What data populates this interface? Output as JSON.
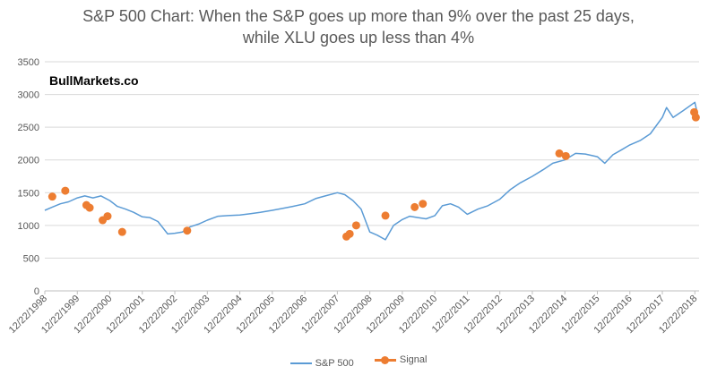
{
  "colors": {
    "line": "#5b9bd5",
    "signal": "#ed7d31",
    "grid": "#d9d9d9",
    "axis_text": "#595959"
  },
  "watermark": "BullMarkets.co",
  "chart_data": {
    "type": "line",
    "title_lines": [
      "S&P 500 Chart: When the S&P goes up more than 9% over the past 25 days,",
      "while XLU goes up less than 4%"
    ],
    "xlabel": "",
    "ylabel": "",
    "ylim": [
      0,
      3500
    ],
    "yticks": [
      0,
      500,
      1000,
      1500,
      2000,
      2500,
      3000,
      3500
    ],
    "xlim": [
      1998.97,
      2019.1
    ],
    "xticks": [
      {
        "label": "12/22/1998",
        "x": 1998.97
      },
      {
        "label": "12/22/1999",
        "x": 1999.97
      },
      {
        "label": "12/22/2000",
        "x": 2000.97
      },
      {
        "label": "12/22/2001",
        "x": 2001.97
      },
      {
        "label": "12/22/2002",
        "x": 2002.97
      },
      {
        "label": "12/22/2003",
        "x": 2003.97
      },
      {
        "label": "12/22/2004",
        "x": 2004.97
      },
      {
        "label": "12/22/2005",
        "x": 2005.97
      },
      {
        "label": "12/22/2006",
        "x": 2006.97
      },
      {
        "label": "12/22/2007",
        "x": 2007.97
      },
      {
        "label": "12/22/2008",
        "x": 2008.97
      },
      {
        "label": "12/22/2009",
        "x": 2009.97
      },
      {
        "label": "12/22/2010",
        "x": 2010.97
      },
      {
        "label": "12/22/2011",
        "x": 2011.97
      },
      {
        "label": "12/22/2012",
        "x": 2012.97
      },
      {
        "label": "12/22/2013",
        "x": 2013.97
      },
      {
        "label": "12/22/2014",
        "x": 2014.97
      },
      {
        "label": "12/22/2015",
        "x": 2015.97
      },
      {
        "label": "12/22/2016",
        "x": 2016.97
      },
      {
        "label": "12/22/2017",
        "x": 2017.97
      },
      {
        "label": "12/22/2018",
        "x": 2018.97
      }
    ],
    "series": [
      {
        "name": "S&P 500",
        "kind": "line",
        "x": [
          1998.97,
          1999.2,
          1999.45,
          1999.7,
          1999.97,
          2000.2,
          2000.45,
          2000.7,
          2000.97,
          2001.2,
          2001.45,
          2001.7,
          2001.97,
          2002.2,
          2002.45,
          2002.75,
          2002.97,
          2003.2,
          2003.45,
          2003.7,
          2003.97,
          2004.3,
          2004.6,
          2004.97,
          2005.3,
          2005.6,
          2005.97,
          2006.3,
          2006.6,
          2006.97,
          2007.3,
          2007.6,
          2007.97,
          2008.2,
          2008.45,
          2008.7,
          2008.97,
          2009.2,
          2009.45,
          2009.7,
          2009.97,
          2010.2,
          2010.45,
          2010.7,
          2010.97,
          2011.2,
          2011.45,
          2011.7,
          2011.97,
          2012.3,
          2012.6,
          2012.97,
          2013.3,
          2013.6,
          2013.97,
          2014.3,
          2014.6,
          2014.97,
          2015.3,
          2015.6,
          2015.97,
          2016.2,
          2016.45,
          2016.7,
          2016.97,
          2017.3,
          2017.6,
          2017.97,
          2018.1,
          2018.3,
          2018.6,
          2018.97,
          2019.05
        ],
        "values": [
          1230,
          1280,
          1330,
          1360,
          1420,
          1450,
          1420,
          1450,
          1380,
          1290,
          1250,
          1200,
          1130,
          1120,
          1060,
          870,
          880,
          900,
          980,
          1020,
          1080,
          1140,
          1150,
          1160,
          1180,
          1200,
          1230,
          1260,
          1290,
          1330,
          1410,
          1450,
          1500,
          1470,
          1380,
          1250,
          900,
          850,
          780,
          1000,
          1090,
          1140,
          1120,
          1100,
          1150,
          1300,
          1330,
          1280,
          1170,
          1250,
          1300,
          1400,
          1550,
          1650,
          1750,
          1850,
          1950,
          2000,
          2100,
          2090,
          2050,
          1950,
          2080,
          2150,
          2230,
          2300,
          2400,
          2650,
          2800,
          2650,
          2750,
          2880,
          2700
        ]
      },
      {
        "name": "Signal",
        "kind": "markers",
        "x": [
          1999.2,
          1999.6,
          2000.25,
          2000.35,
          2000.75,
          2000.9,
          2001.35,
          2003.35,
          2008.25,
          2008.35,
          2008.55,
          2009.45,
          2010.35,
          2010.6,
          2014.8,
          2015.0,
          2018.95,
          2019.0
        ],
        "values": [
          1440,
          1530,
          1310,
          1270,
          1080,
          1140,
          900,
          920,
          830,
          870,
          1000,
          1150,
          1280,
          1330,
          2100,
          2060,
          2730,
          2650
        ]
      }
    ],
    "legend": [
      "S&P 500",
      "Signal"
    ],
    "legend_position": "bottom",
    "grid": true
  }
}
